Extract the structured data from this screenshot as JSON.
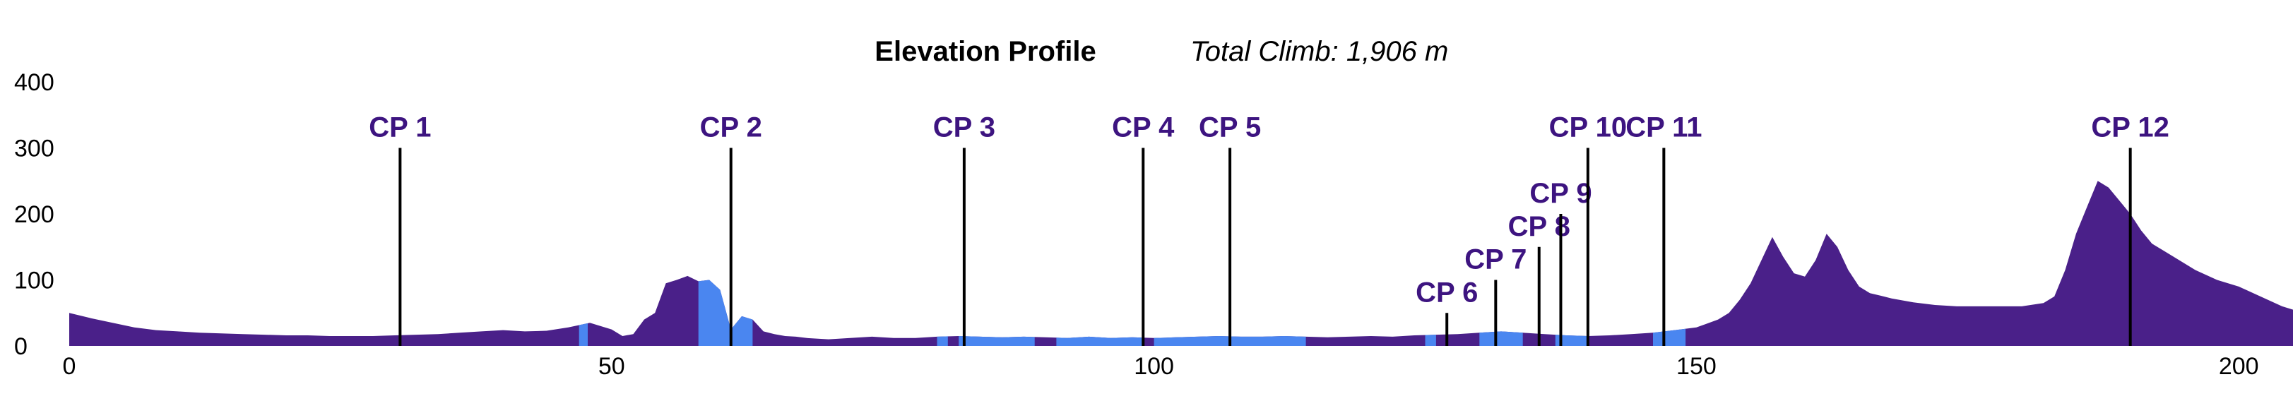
{
  "chart_data": {
    "type": "area",
    "title": "Elevation Profile",
    "subtitle": "Total Climb: 1,906 m",
    "xlabel": "",
    "ylabel": "",
    "xlim": [
      0,
      205
    ],
    "ylim": [
      0,
      400
    ],
    "x_ticks": [
      {
        "value": 0,
        "label": "0"
      },
      {
        "value": 50,
        "label": "50"
      },
      {
        "value": 100,
        "label": "100"
      },
      {
        "value": 150,
        "label": "150"
      },
      {
        "value": 200,
        "label": "200"
      }
    ],
    "y_ticks": [
      {
        "value": 0,
        "label": "0"
      },
      {
        "value": 100,
        "label": "100"
      },
      {
        "value": 200,
        "label": "200"
      },
      {
        "value": 300,
        "label": "300"
      },
      {
        "value": 400,
        "label": "400"
      }
    ],
    "grid": false,
    "colors": {
      "terrain": "#4a2089",
      "highlight": "#4a86f0",
      "checkpoint_text": "#3d1480"
    },
    "series": [
      {
        "x": [
          0,
          2,
          4,
          6,
          8,
          10,
          12,
          14,
          16,
          18,
          20,
          22,
          24,
          26,
          28,
          30,
          32,
          34,
          36,
          38,
          40,
          42,
          44,
          46,
          48,
          50,
          51,
          52,
          53,
          54,
          55,
          56,
          57,
          58,
          59,
          60,
          61,
          62,
          63,
          64,
          65,
          66,
          67,
          68,
          70,
          72,
          74,
          76,
          78,
          80,
          82,
          84,
          86,
          88,
          90,
          92,
          94,
          96,
          98,
          100,
          102,
          104,
          106,
          108,
          110,
          112,
          114,
          116,
          118,
          120,
          122,
          124,
          126,
          128,
          130,
          132,
          134,
          136,
          138,
          140,
          142,
          144,
          146,
          148,
          150,
          152,
          153,
          154,
          155,
          156,
          157,
          158,
          159,
          160,
          161,
          162,
          163,
          164,
          165,
          166,
          167,
          168,
          170,
          172,
          174,
          176,
          178,
          180,
          182,
          183,
          184,
          185,
          186,
          187,
          188,
          189,
          190,
          191,
          192,
          193,
          194,
          196,
          198,
          200,
          202,
          204,
          205
        ],
        "y": [
          50,
          42,
          35,
          28,
          24,
          22,
          20,
          19,
          18,
          17,
          16,
          16,
          15,
          15,
          15,
          16,
          17,
          18,
          20,
          22,
          24,
          22,
          23,
          28,
          35,
          25,
          15,
          18,
          40,
          50,
          95,
          100,
          106,
          98,
          100,
          85,
          25,
          45,
          40,
          22,
          18,
          15,
          14,
          12,
          10,
          12,
          14,
          12,
          12,
          14,
          15,
          14,
          13,
          14,
          13,
          12,
          14,
          12,
          13,
          12,
          13,
          14,
          15,
          14,
          14,
          15,
          14,
          13,
          14,
          15,
          14,
          16,
          17,
          18,
          20,
          22,
          20,
          18,
          16,
          15,
          16,
          18,
          20,
          24,
          28,
          40,
          50,
          70,
          95,
          130,
          165,
          135,
          110,
          105,
          130,
          170,
          150,
          115,
          90,
          80,
          76,
          72,
          66,
          62,
          60,
          60,
          60,
          60,
          65,
          75,
          115,
          170,
          210,
          250,
          240,
          220,
          200,
          175,
          155,
          145,
          135,
          115,
          100,
          90,
          75,
          60,
          55
        ]
      }
    ],
    "highlight_segments": [
      {
        "x_start": 47,
        "x_end": 47.8
      },
      {
        "x_start": 58,
        "x_end": 63
      },
      {
        "x_start": 80,
        "x_end": 81
      },
      {
        "x_start": 82,
        "x_end": 89
      },
      {
        "x_start": 91,
        "x_end": 99
      },
      {
        "x_start": 100,
        "x_end": 114
      },
      {
        "x_start": 125,
        "x_end": 126
      },
      {
        "x_start": 130,
        "x_end": 134
      },
      {
        "x_start": 137,
        "x_end": 140
      },
      {
        "x_start": 146,
        "x_end": 149
      }
    ],
    "checkpoints": [
      {
        "label": "CP 1",
        "x": 30.5,
        "top": 300
      },
      {
        "label": "CP 2",
        "x": 61,
        "top": 300
      },
      {
        "label": "CP 3",
        "x": 82.5,
        "top": 300
      },
      {
        "label": "CP 4",
        "x": 99,
        "top": 300
      },
      {
        "label": "CP 5",
        "x": 107,
        "top": 300
      },
      {
        "label": "CP 6",
        "x": 127,
        "top": 50
      },
      {
        "label": "CP 7",
        "x": 131.5,
        "top": 100
      },
      {
        "label": "CP 8",
        "x": 135.5,
        "top": 150
      },
      {
        "label": "CP 9",
        "x": 137.5,
        "top": 200
      },
      {
        "label": "CP 10",
        "x": 140,
        "top": 300
      },
      {
        "label": "CP 11",
        "x": 147,
        "top": 300
      },
      {
        "label": "CP 12",
        "x": 190,
        "top": 300
      }
    ]
  }
}
